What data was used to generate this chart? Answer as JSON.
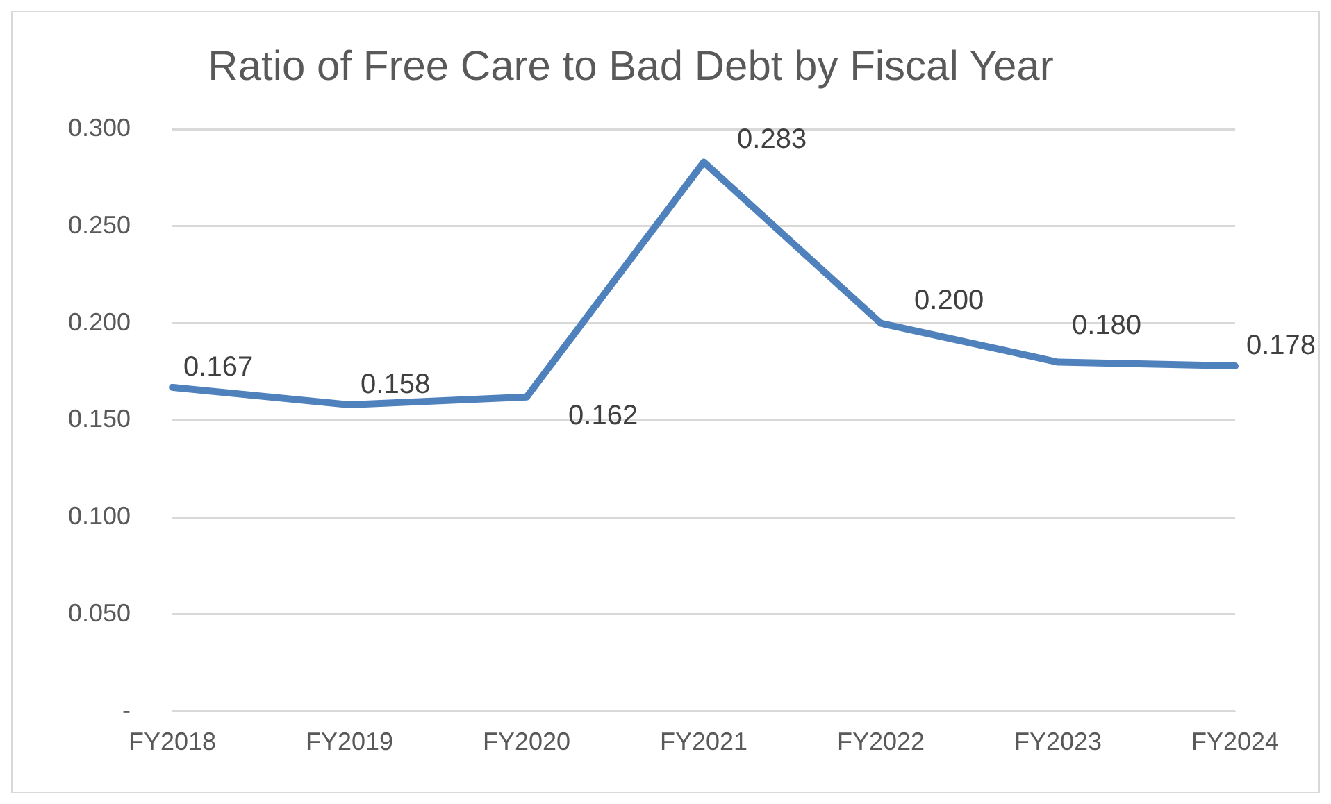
{
  "chart_data": {
    "type": "line",
    "title": "Ratio of Free Care to Bad Debt by Fiscal Year",
    "categories": [
      "FY2018",
      "FY2019",
      "FY2020",
      "FY2021",
      "FY2022",
      "FY2023",
      "FY2024"
    ],
    "series": [
      {
        "color": "#4f81bd",
        "values": [
          0.167,
          0.158,
          0.162,
          0.283,
          0.2,
          0.18,
          0.178
        ],
        "value_labels": [
          "0.167",
          "0.158",
          "0.162",
          "0.283",
          "0.200",
          "0.180",
          "0.178"
        ]
      }
    ],
    "ylim": [
      0,
      0.3
    ],
    "yticks": [
      {
        "value": 0,
        "label": "-"
      },
      {
        "value": 0.05,
        "label": "0.050"
      },
      {
        "value": 0.1,
        "label": "0.100"
      },
      {
        "value": 0.15,
        "label": "0.150"
      },
      {
        "value": 0.2,
        "label": "0.200"
      },
      {
        "value": 0.25,
        "label": "0.250"
      },
      {
        "value": 0.3,
        "label": "0.300"
      }
    ],
    "grid": "y",
    "marker": "none",
    "line_style": "solid",
    "legend": false
  }
}
